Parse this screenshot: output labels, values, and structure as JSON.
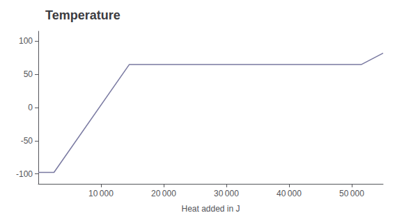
{
  "chart_data": {
    "type": "line",
    "title": "Temperature",
    "xlabel": "Heat added in J",
    "x": [
      0,
      2500,
      14500,
      51500,
      55000
    ],
    "values": [
      -97.8,
      -97.8,
      64.7,
      64.7,
      82
    ],
    "color": "#7878a0",
    "xlim": [
      0,
      55000
    ],
    "xticks": [
      {
        "value": 10000,
        "label": "10 000"
      },
      {
        "value": 20000,
        "label": "20 000"
      },
      {
        "value": 30000,
        "label": "30 000"
      },
      {
        "value": 40000,
        "label": "40 000"
      },
      {
        "value": 50000,
        "label": "50 000"
      }
    ],
    "ylim": [
      -115,
      115
    ],
    "yticks": [
      -100,
      -50,
      0,
      50,
      100
    ],
    "grid": false
  }
}
